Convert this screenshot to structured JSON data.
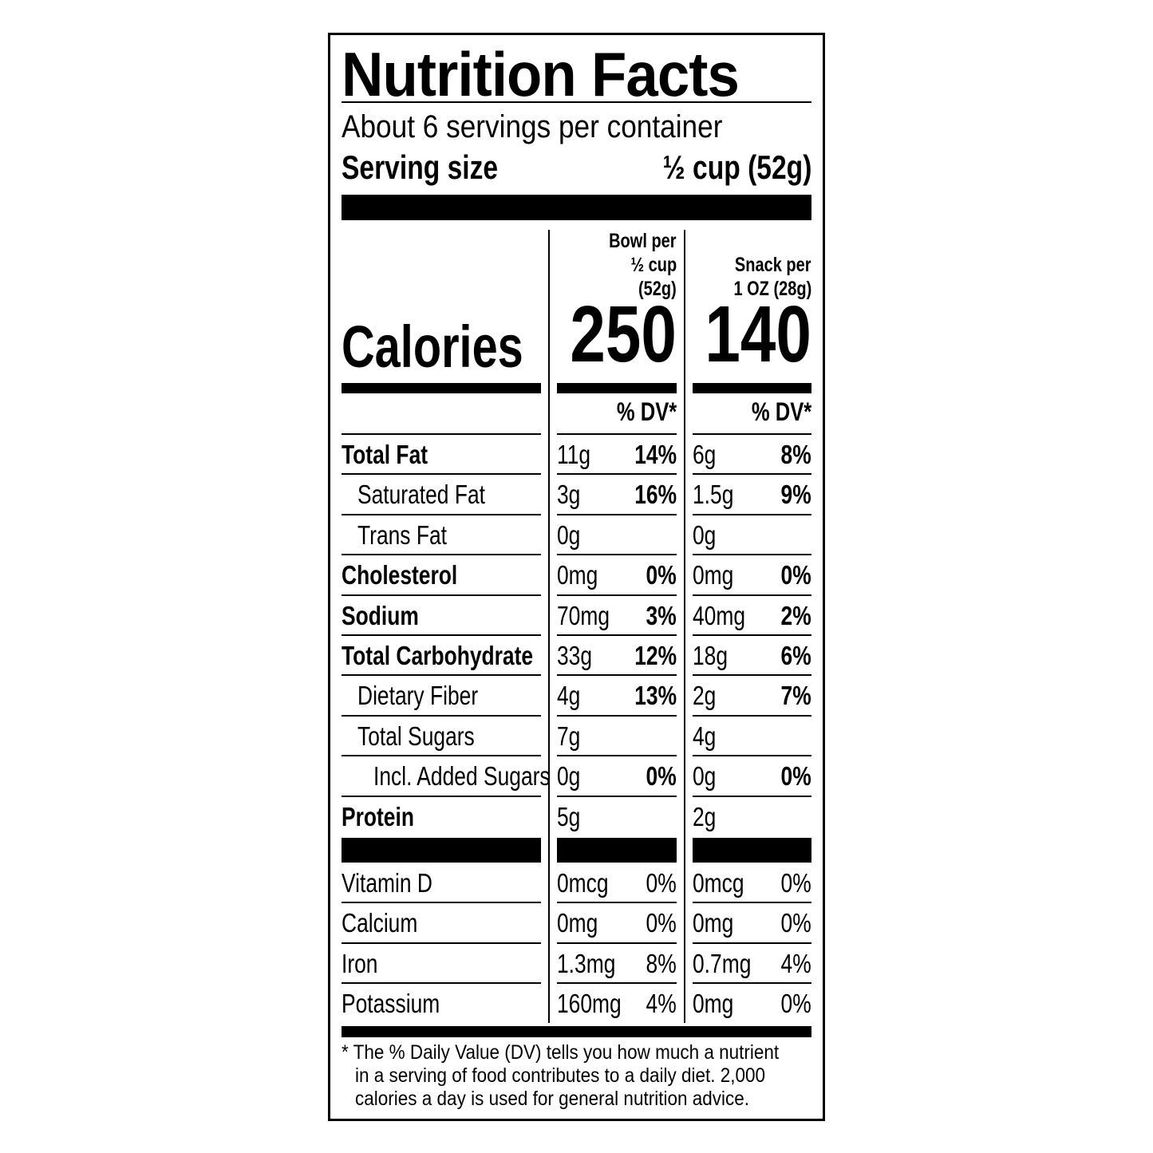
{
  "title": "Nutrition Facts",
  "servings_per_container": "About 6 servings per container",
  "serving_size_label": "Serving size",
  "serving_size_value": "½ cup (52g)",
  "columns": [
    {
      "header": [
        "Bowl per",
        "½ cup",
        "(52g)"
      ],
      "calories": "250",
      "dv_header": "% DV*"
    },
    {
      "header": [
        "Snack per",
        "1 OZ (28g)"
      ],
      "calories": "140",
      "dv_header": "% DV*"
    }
  ],
  "calories_label": "Calories",
  "nutrients": [
    {
      "label": "Total Fat",
      "indent": 0,
      "bold": true,
      "v1": "11g",
      "dv1": "14%",
      "v2": "6g",
      "dv2": "8%"
    },
    {
      "label": "Saturated Fat",
      "indent": 1,
      "bold": false,
      "v1": "3g",
      "dv1": "16%",
      "v2": "1.5g",
      "dv2": "9%"
    },
    {
      "label": "Trans Fat",
      "indent": 1,
      "bold": false,
      "v1": "0g",
      "dv1": "",
      "v2": "0g",
      "dv2": ""
    },
    {
      "label": "Cholesterol",
      "indent": 0,
      "bold": true,
      "v1": "0mg",
      "dv1": "0%",
      "v2": "0mg",
      "dv2": "0%"
    },
    {
      "label": "Sodium",
      "indent": 0,
      "bold": true,
      "v1": "70mg",
      "dv1": "3%",
      "v2": "40mg",
      "dv2": "2%"
    },
    {
      "label": "Total Carbohydrate",
      "indent": 0,
      "bold": true,
      "v1": "33g",
      "dv1": "12%",
      "v2": "18g",
      "dv2": "6%"
    },
    {
      "label": "Dietary Fiber",
      "indent": 1,
      "bold": false,
      "v1": "4g",
      "dv1": "13%",
      "v2": "2g",
      "dv2": "7%"
    },
    {
      "label": "Total Sugars",
      "indent": 1,
      "bold": false,
      "v1": "7g",
      "dv1": "",
      "v2": "4g",
      "dv2": ""
    },
    {
      "label": "Incl. Added Sugars",
      "indent": 2,
      "bold": false,
      "v1": "0g",
      "dv1": "0%",
      "v2": "0g",
      "dv2": "0%"
    },
    {
      "label": "Protein",
      "indent": 0,
      "bold": true,
      "v1": "5g",
      "dv1": "",
      "v2": "2g",
      "dv2": ""
    }
  ],
  "vitamins": [
    {
      "label": "Vitamin D",
      "v1": "0mcg",
      "dv1": "0%",
      "v2": "0mcg",
      "dv2": "0%"
    },
    {
      "label": "Calcium",
      "v1": "0mg",
      "dv1": "0%",
      "v2": "0mg",
      "dv2": "0%"
    },
    {
      "label": "Iron",
      "v1": "1.3mg",
      "dv1": "8%",
      "v2": "0.7mg",
      "dv2": "4%"
    },
    {
      "label": "Potassium",
      "v1": "160mg",
      "dv1": "4%",
      "v2": "0mg",
      "dv2": "0%"
    }
  ],
  "footnote": [
    "* The % Daily Value (DV) tells you how much a nutrient",
    "in a serving of food contributes to a daily diet. 2,000",
    "calories a day is used for general nutrition advice."
  ]
}
